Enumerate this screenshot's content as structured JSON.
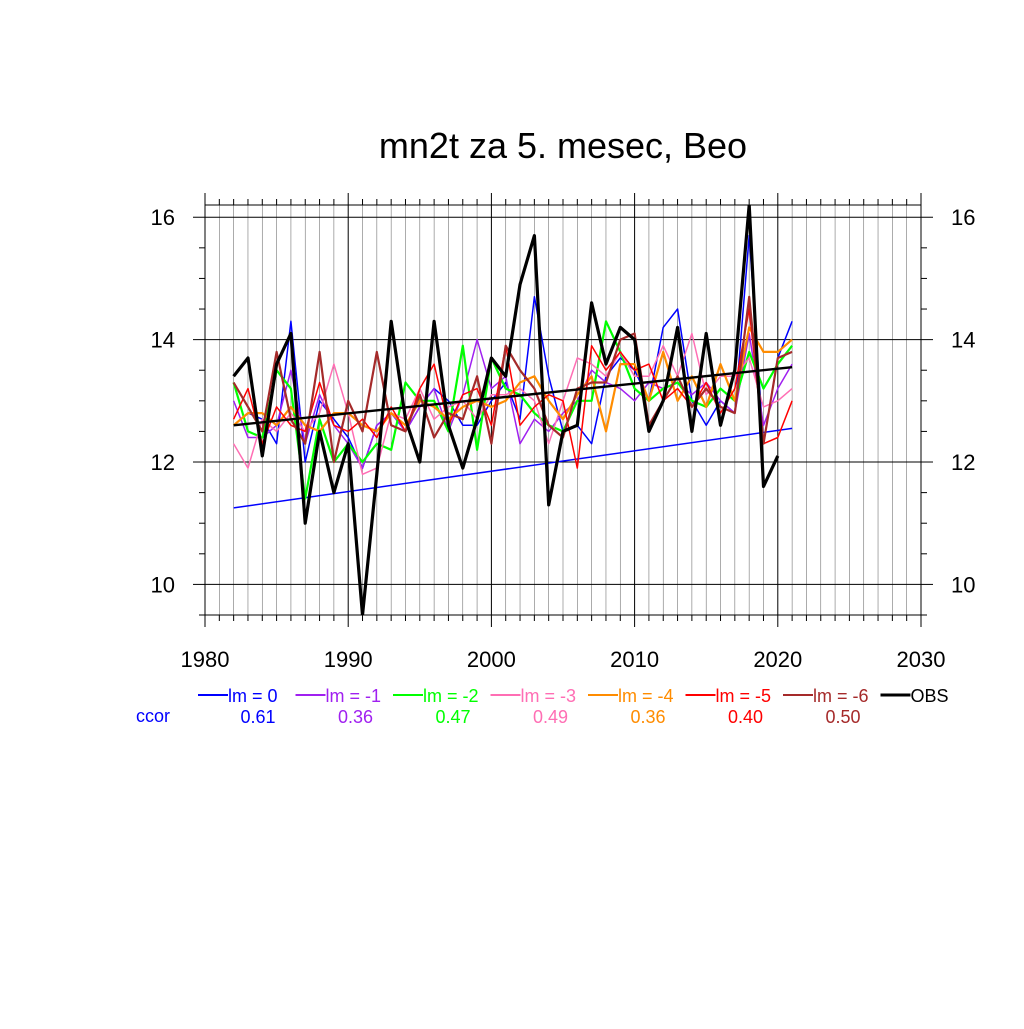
{
  "chart_data": {
    "type": "line",
    "title": "mn2t za 5. mesec, Beo",
    "xlabel": "",
    "ylabel": "",
    "xlim": [
      1980,
      2030
    ],
    "ylim": [
      9.5,
      16.2
    ],
    "x_ticks": [
      1980,
      1990,
      2000,
      2010,
      2020,
      2030
    ],
    "y_ticks": [
      10,
      12,
      14,
      16
    ],
    "grid": true,
    "x": [
      1982,
      1983,
      1984,
      1985,
      1986,
      1987,
      1988,
      1989,
      1990,
      1991,
      1992,
      1993,
      1994,
      1995,
      1996,
      1997,
      1998,
      1999,
      2000,
      2001,
      2002,
      2003,
      2004,
      2005,
      2006,
      2007,
      2008,
      2009,
      2010,
      2011,
      2012,
      2013,
      2014,
      2015,
      2016,
      2017,
      2018,
      2019,
      2020,
      2021
    ],
    "ccor_label": "ccor",
    "series": [
      {
        "name": "lm = 0",
        "color": "#0000ff",
        "width": 1.5,
        "ccor": "0.61",
        "values": [
          12.6,
          12.8,
          12.7,
          12.3,
          14.3,
          12.0,
          13.0,
          12.7,
          12.4,
          11.9,
          12.6,
          12.8,
          12.5,
          12.9,
          13.2,
          13.0,
          12.6,
          12.6,
          13.0,
          13.3,
          12.7,
          14.7,
          13.4,
          12.5,
          12.6,
          12.3,
          13.4,
          13.7,
          13.5,
          13.0,
          14.2,
          14.5,
          13.0,
          12.6,
          13.0,
          12.8,
          15.7,
          12.3,
          13.7,
          14.3
        ],
        "trend": [
          11.25,
          12.55
        ]
      },
      {
        "name": "lm = -1",
        "color": "#a020f0",
        "width": 1.5,
        "ccor": "0.36",
        "values": [
          13.0,
          12.4,
          12.4,
          12.6,
          13.5,
          12.3,
          13.1,
          12.6,
          12.3,
          11.9,
          12.6,
          12.8,
          12.5,
          12.9,
          13.2,
          12.5,
          13.1,
          14.0,
          13.2,
          13.4,
          12.3,
          12.7,
          12.5,
          12.8,
          13.0,
          13.5,
          13.3,
          13.2,
          13.0,
          13.3,
          13.2,
          13.3,
          13.1,
          13.3,
          13.0,
          12.8,
          14.1,
          12.6,
          13.2,
          13.6
        ]
      },
      {
        "name": "lm = -2",
        "color": "#00ff00",
        "width": 2.2,
        "ccor": "0.47",
        "values": [
          13.3,
          12.5,
          12.4,
          13.5,
          13.2,
          11.4,
          12.7,
          12.0,
          12.3,
          12.0,
          12.3,
          12.2,
          13.3,
          13.0,
          13.0,
          12.5,
          13.9,
          12.2,
          13.7,
          13.2,
          13.1,
          12.8,
          12.6,
          12.5,
          13.0,
          13.0,
          14.3,
          13.8,
          13.2,
          13.0,
          13.2,
          13.3,
          13.0,
          12.9,
          13.2,
          13.0,
          13.8,
          13.2,
          13.6,
          13.9
        ]
      },
      {
        "name": "lm = -3",
        "color": "#ff6eb4",
        "width": 1.5,
        "ccor": "0.49",
        "values": [
          12.3,
          11.9,
          12.7,
          12.5,
          12.8,
          12.5,
          12.8,
          13.6,
          12.8,
          11.8,
          11.9,
          12.8,
          12.7,
          13.2,
          12.7,
          12.9,
          13.0,
          12.7,
          13.1,
          13.1,
          13.2,
          13.0,
          12.3,
          13.0,
          13.7,
          13.6,
          13.4,
          13.8,
          13.4,
          13.4,
          13.9,
          13.4,
          14.1,
          13.1,
          13.4,
          13.4,
          13.7,
          12.9,
          13.0,
          13.2
        ]
      },
      {
        "name": "lm = -4",
        "color": "#ff8c00",
        "width": 2.2,
        "ccor": "0.36",
        "values": [
          12.6,
          12.8,
          12.8,
          12.6,
          12.9,
          12.6,
          12.5,
          12.8,
          12.8,
          12.6,
          12.5,
          12.8,
          12.6,
          13.0,
          12.9,
          12.7,
          12.9,
          13.0,
          12.9,
          13.0,
          13.3,
          13.4,
          13.0,
          12.7,
          13.1,
          13.4,
          12.5,
          13.6,
          13.6,
          13.0,
          13.8,
          13.0,
          13.4,
          12.9,
          13.6,
          13.0,
          14.2,
          13.8,
          13.8,
          14.0
        ]
      },
      {
        "name": "lm = -5",
        "color": "#ff0000",
        "width": 1.5,
        "ccor": "0.40",
        "values": [
          12.7,
          13.2,
          12.3,
          12.9,
          12.6,
          12.5,
          13.3,
          12.6,
          12.5,
          12.7,
          12.4,
          12.9,
          12.5,
          13.2,
          13.6,
          12.6,
          13.1,
          13.2,
          12.6,
          13.9,
          12.6,
          12.9,
          13.1,
          13.0,
          11.9,
          13.9,
          13.5,
          13.8,
          13.5,
          13.6,
          13.0,
          13.2,
          12.9,
          13.3,
          12.8,
          13.2,
          14.5,
          12.3,
          12.4,
          13.0
        ]
      },
      {
        "name": "lm = -6",
        "color": "#a52a2a",
        "width": 2.2,
        "ccor": "0.50",
        "values": [
          13.3,
          12.9,
          12.5,
          13.8,
          12.7,
          12.3,
          13.8,
          12.0,
          13.0,
          12.5,
          13.8,
          12.6,
          12.5,
          13.1,
          12.4,
          12.8,
          12.7,
          13.4,
          12.3,
          13.9,
          13.5,
          13.2,
          12.6,
          12.4,
          13.2,
          13.3,
          13.3,
          14.0,
          14.1,
          12.6,
          13.0,
          13.4,
          12.9,
          13.2,
          12.9,
          12.8,
          14.7,
          12.3,
          13.7,
          13.8
        ]
      },
      {
        "name": "OBS",
        "color": "#000000",
        "width": 3.2,
        "ccor": "",
        "values": [
          13.4,
          13.7,
          12.1,
          13.6,
          14.1,
          11.0,
          12.5,
          11.5,
          12.3,
          9.5,
          11.8,
          14.3,
          12.7,
          12.0,
          14.3,
          12.6,
          11.9,
          12.7,
          13.7,
          13.4,
          14.9,
          15.7,
          11.3,
          12.5,
          12.6,
          14.6,
          13.6,
          14.2,
          14.0,
          12.5,
          13.0,
          14.2,
          12.5,
          14.1,
          12.6,
          13.5,
          16.2,
          11.6,
          12.1,
          null
        ],
        "trend": [
          12.6,
          13.55
        ]
      }
    ]
  }
}
